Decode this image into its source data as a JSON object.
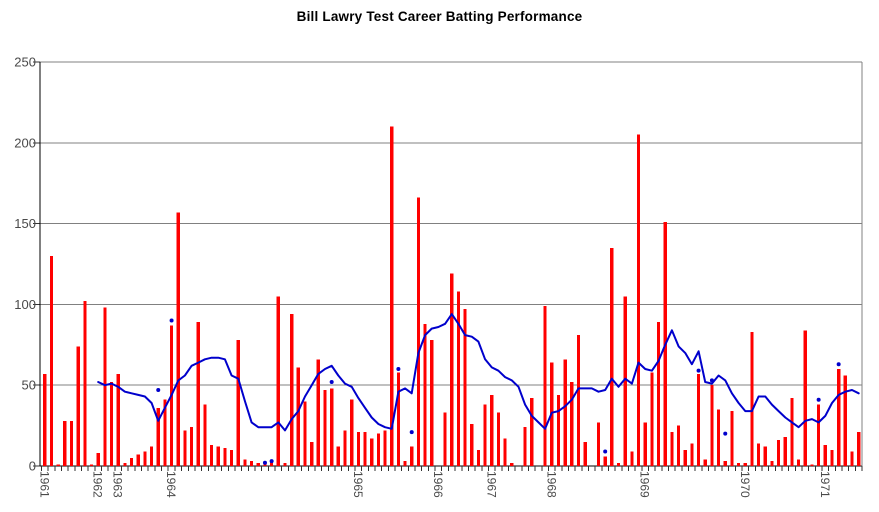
{
  "title": "Bill Lawry Test Career Batting Performance",
  "colors": {
    "bar": "#ff0000",
    "line": "#0000cc",
    "dot": "#0000cc",
    "gridline": "#808080",
    "axis": "#000000",
    "frame": "#808080",
    "tick": "#333333",
    "label_text": "#4a4a4a",
    "background": "#ffffff"
  },
  "chart_data": {
    "type": "bar",
    "title": "Bill Lawry Test Career Batting Performance",
    "xlabel": "",
    "ylabel": "",
    "ylim": [
      0,
      250
    ],
    "grid": true,
    "legend": "none",
    "y_ticks": [
      0,
      50,
      100,
      150,
      200,
      250
    ],
    "x_year_labels": [
      {
        "label": "1961",
        "index": 0
      },
      {
        "label": "1962",
        "index": 8
      },
      {
        "label": "1963",
        "index": 11
      },
      {
        "label": "1964",
        "index": 19
      },
      {
        "label": "1965",
        "index": 47
      },
      {
        "label": "1966",
        "index": 59
      },
      {
        "label": "1967",
        "index": 67
      },
      {
        "label": "1968",
        "index": 76
      },
      {
        "label": "1969",
        "index": 90
      },
      {
        "label": "1970",
        "index": 105
      },
      {
        "label": "1971",
        "index": 117
      }
    ],
    "series": [
      {
        "name": "innings-runs-bars",
        "type": "bar",
        "values": [
          57,
          130,
          1,
          28,
          28,
          74,
          102,
          1,
          8,
          98,
          52,
          57,
          2,
          5,
          7,
          9,
          12,
          36,
          41,
          87,
          157,
          22,
          24,
          89,
          38,
          13,
          12,
          11,
          10,
          78,
          4,
          3,
          2,
          2,
          3,
          105,
          2,
          94,
          61,
          40,
          15,
          66,
          47,
          48,
          12,
          22,
          41,
          21,
          21,
          17,
          20,
          22,
          210,
          58,
          3,
          12,
          166,
          88,
          78,
          0,
          33,
          119,
          108,
          97,
          26,
          10,
          38,
          44,
          33,
          17,
          2,
          0,
          24,
          42,
          0,
          99,
          64,
          44,
          66,
          52,
          81,
          15,
          0,
          27,
          6,
          135,
          2,
          105,
          9,
          205,
          27,
          58,
          89,
          151,
          21,
          25,
          10,
          14,
          57,
          4,
          50,
          35,
          3,
          34,
          2,
          2,
          83,
          14,
          12,
          3,
          16,
          18,
          42,
          4,
          84,
          1,
          38,
          13,
          10,
          60,
          56,
          9,
          21
        ]
      },
      {
        "name": "moving-average-line",
        "type": "line",
        "values": [
          null,
          null,
          null,
          null,
          null,
          null,
          null,
          null,
          52,
          50,
          51,
          49,
          46,
          45,
          44,
          43,
          39,
          28,
          36,
          44,
          53,
          56,
          62,
          64,
          66,
          67,
          67,
          66,
          56,
          54,
          40,
          27,
          24,
          24,
          24,
          27,
          22,
          29,
          34,
          43,
          50,
          57,
          60,
          62,
          56,
          51,
          49,
          42,
          36,
          30,
          26,
          24,
          23,
          46,
          48,
          45,
          70,
          81,
          85,
          86,
          88,
          94,
          88,
          81,
          80,
          77,
          66,
          61,
          59,
          55,
          53,
          49,
          38,
          31,
          27,
          23,
          33,
          34,
          37,
          41,
          48,
          48,
          48,
          46,
          47,
          54,
          49,
          54,
          51,
          64,
          60,
          59,
          65,
          75,
          84,
          74,
          70,
          63,
          71,
          52,
          51,
          56,
          53,
          45,
          39,
          34,
          34,
          43,
          43,
          38,
          34,
          30,
          27,
          24,
          28,
          29,
          27,
          31,
          39,
          44,
          46,
          47,
          45
        ]
      },
      {
        "name": "not-out-markers",
        "type": "scatter",
        "points": [
          {
            "index": 17,
            "value": 47
          },
          {
            "index": 19,
            "value": 90
          },
          {
            "index": 33,
            "value": 2
          },
          {
            "index": 34,
            "value": 3
          },
          {
            "index": 43,
            "value": 52
          },
          {
            "index": 53,
            "value": 60
          },
          {
            "index": 55,
            "value": 21
          },
          {
            "index": 84,
            "value": 9
          },
          {
            "index": 98,
            "value": 59
          },
          {
            "index": 100,
            "value": 53
          },
          {
            "index": 102,
            "value": 20
          },
          {
            "index": 116,
            "value": 41
          },
          {
            "index": 119,
            "value": 63
          }
        ]
      }
    ]
  }
}
